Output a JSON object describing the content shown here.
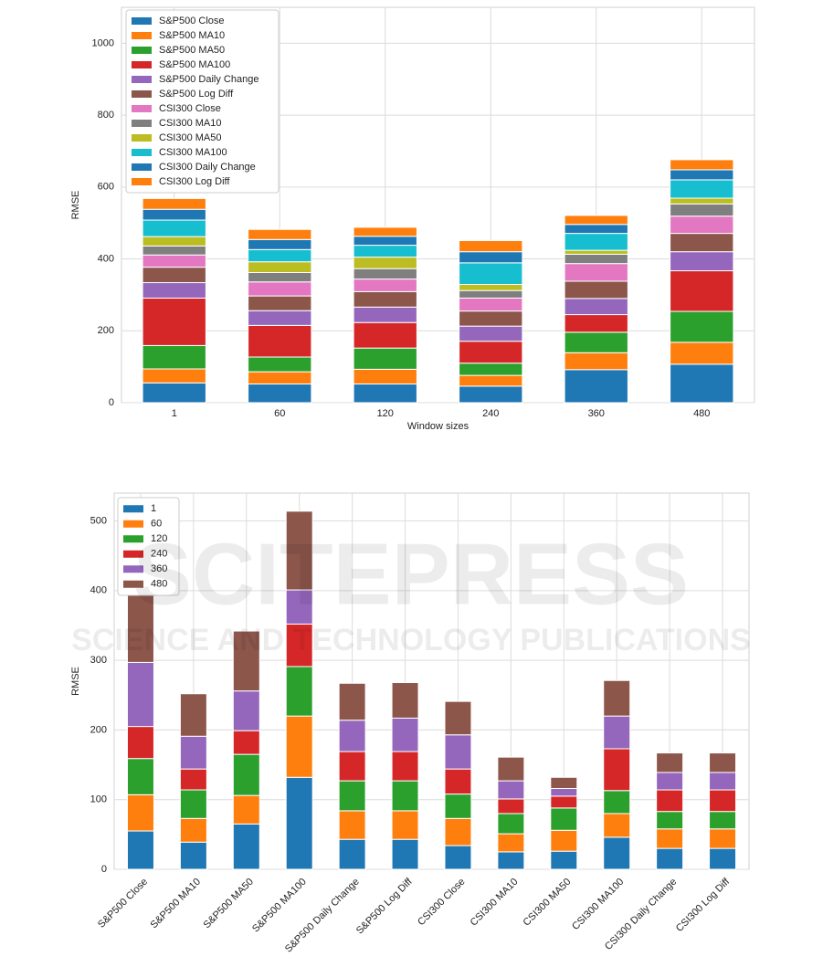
{
  "watermark": {
    "title": "SCITEPRESS",
    "subtitle": "SCIENCE AND TECHNOLOGY PUBLICATIONS"
  },
  "chart_data": [
    {
      "type": "stacked_bar",
      "xlabel": "Window sizes",
      "ylabel": "RMSE",
      "categories": [
        "1",
        "60",
        "120",
        "240",
        "360",
        "480"
      ],
      "ylim": [
        0,
        1100
      ],
      "yticks": [
        0,
        200,
        400,
        600,
        800,
        1000
      ],
      "grid": true,
      "legend": "upper left",
      "series": [
        {
          "name": "S&P500 Close",
          "color": "#1f77b4",
          "values": [
            55,
            52,
            52,
            46,
            92,
            107
          ]
        },
        {
          "name": "S&P500 MA10",
          "color": "#ff7f0e",
          "values": [
            39,
            34,
            41,
            30,
            47,
            61
          ]
        },
        {
          "name": "S&P500 MA50",
          "color": "#2ca02c",
          "values": [
            65,
            41,
            59,
            34,
            57,
            86
          ]
        },
        {
          "name": "S&P500 MA100",
          "color": "#d62728",
          "values": [
            132,
            88,
            71,
            61,
            49,
            113
          ]
        },
        {
          "name": "S&P500 Daily Change",
          "color": "#9467bd",
          "values": [
            43,
            41,
            43,
            42,
            45,
            53
          ]
        },
        {
          "name": "S&P500 Log Diff",
          "color": "#8c564b",
          "values": [
            43,
            41,
            43,
            42,
            48,
            51
          ]
        },
        {
          "name": "CSI300 Close",
          "color": "#e377c2",
          "values": [
            34,
            39,
            35,
            36,
            49,
            48
          ]
        },
        {
          "name": "CSI300 MA10",
          "color": "#7f7f7f",
          "values": [
            25,
            26,
            29,
            21,
            26,
            34
          ]
        },
        {
          "name": "CSI300 MA50",
          "color": "#bcbd22",
          "values": [
            26,
            30,
            32,
            17,
            11,
            16
          ]
        },
        {
          "name": "CSI300 MA100",
          "color": "#17becf",
          "values": [
            46,
            34,
            33,
            60,
            47,
            51
          ]
        },
        {
          "name": "CSI300 Daily Change",
          "color": "#1f77b4",
          "values": [
            30,
            28,
            25,
            31,
            25,
            28
          ]
        },
        {
          "name": "CSI300 Log Diff",
          "color": "#ff7f0e",
          "values": [
            30,
            28,
            25,
            31,
            25,
            28
          ]
        }
      ]
    },
    {
      "type": "stacked_bar",
      "ylabel": "RMSE",
      "categories": [
        "S&P500 Close",
        "S&P500 MA10",
        "S&P500 MA50",
        "S&P500 MA100",
        "S&P500 Daily Change",
        "S&P500 Log Diff",
        "CSI300 Close",
        "CSI300 MA10",
        "CSI300 MA50",
        "CSI300 MA100",
        "CSI300 Daily Change",
        "CSI300 Log Diff"
      ],
      "ylim": [
        0,
        540
      ],
      "yticks": [
        0,
        100,
        200,
        300,
        400,
        500
      ],
      "grid": true,
      "legend": "upper left",
      "series": [
        {
          "name": "1",
          "color": "#1f77b4",
          "values": [
            55,
            39,
            65,
            132,
            43,
            43,
            34,
            25,
            26,
            46,
            30,
            30
          ]
        },
        {
          "name": "60",
          "color": "#ff7f0e",
          "values": [
            52,
            34,
            41,
            88,
            41,
            41,
            39,
            26,
            30,
            34,
            28,
            28
          ]
        },
        {
          "name": "120",
          "color": "#2ca02c",
          "values": [
            52,
            41,
            59,
            71,
            43,
            43,
            35,
            29,
            32,
            33,
            25,
            25
          ]
        },
        {
          "name": "240",
          "color": "#d62728",
          "values": [
            46,
            30,
            34,
            61,
            42,
            42,
            36,
            21,
            17,
            60,
            31,
            31
          ]
        },
        {
          "name": "360",
          "color": "#9467bd",
          "values": [
            92,
            47,
            57,
            49,
            45,
            48,
            49,
            26,
            11,
            47,
            25,
            25
          ]
        },
        {
          "name": "480",
          "color": "#8c564b",
          "values": [
            107,
            61,
            86,
            113,
            53,
            51,
            48,
            34,
            16,
            51,
            28,
            28
          ]
        }
      ]
    }
  ]
}
